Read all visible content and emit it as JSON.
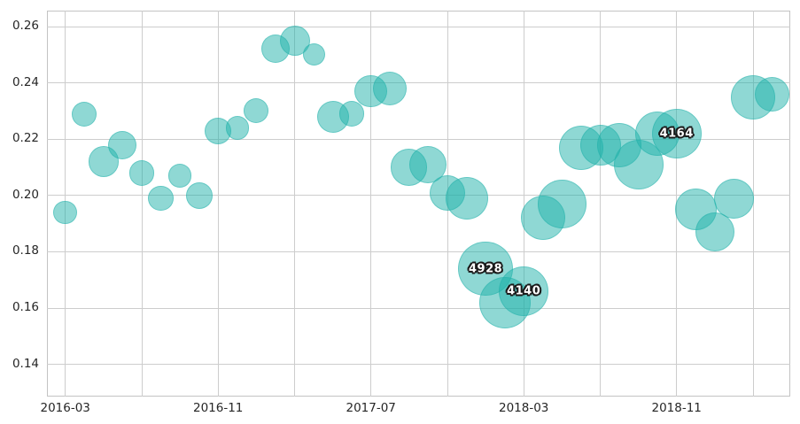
{
  "chart_data": {
    "type": "scatter",
    "subtype": "bubble",
    "title": "",
    "xlabel": "",
    "ylabel": "",
    "grid": true,
    "legend": false,
    "xlim": [
      "2016-02",
      "2019-05"
    ],
    "ylim": [
      0.129,
      0.266
    ],
    "x_tick_labels": [
      "2016-03",
      "2016-11",
      "2017-07",
      "2018-03",
      "2018-11"
    ],
    "x_grid_months": [
      "2016-03",
      "2016-07",
      "2016-11",
      "2017-03",
      "2017-07",
      "2017-11",
      "2018-03",
      "2018-07",
      "2018-11",
      "2019-03"
    ],
    "y_tick_labels": [
      "0.26",
      "0.24",
      "0.22",
      "0.20",
      "0.18",
      "0.16",
      "0.14"
    ],
    "x": [
      "2016-03",
      "2016-04",
      "2016-05",
      "2016-06",
      "2016-07",
      "2016-08",
      "2016-09",
      "2016-10",
      "2016-11",
      "2016-12",
      "2017-01",
      "2017-02",
      "2017-03",
      "2017-04",
      "2017-05",
      "2017-06",
      "2017-07",
      "2017-08",
      "2017-09",
      "2017-10",
      "2017-11",
      "2017-12",
      "2018-01",
      "2018-02",
      "2018-03",
      "2018-04",
      "2018-05",
      "2018-06",
      "2018-07",
      "2018-08",
      "2018-09",
      "2018-10",
      "2018-11",
      "2018-12",
      "2019-01",
      "2019-02",
      "2019-03",
      "2019-04"
    ],
    "values": [
      0.194,
      0.229,
      0.212,
      0.218,
      0.208,
      0.199,
      0.207,
      0.2,
      0.223,
      0.224,
      0.23,
      0.252,
      0.255,
      0.25,
      0.228,
      0.229,
      0.237,
      0.238,
      0.21,
      0.211,
      0.201,
      0.199,
      0.174,
      0.162,
      0.166,
      0.192,
      0.197,
      0.217,
      0.218,
      0.218,
      0.211,
      0.222,
      0.222,
      0.195,
      0.187,
      0.199,
      0.235,
      0.236
    ],
    "sizes": [
      925,
      1025,
      1565,
      1338,
      1069,
      1069,
      925,
      1177,
      1177,
      925,
      1025,
      1338,
      1511,
      817,
      1694,
      1069,
      1751,
      1928,
      2241,
      2306,
      2092,
      3012,
      4928,
      4399,
      4140,
      3268,
      3898,
      3268,
      2767,
      3268,
      4100,
      3268,
      4164,
      2839,
      2531,
      2647,
      3268,
      1988
    ],
    "annotations": [
      {
        "x": "2018-01",
        "text": "4928"
      },
      {
        "x": "2018-03",
        "text": "4140"
      },
      {
        "x": "2018-11",
        "text": "4164"
      }
    ],
    "colors": {
      "bubble_fill": "#20B2AA",
      "bubble_opacity": 0.5,
      "gridline": "#cdcdcd",
      "axis_text": "#262626",
      "annotation_text": "#ffffff",
      "annotation_outline": "#1a1a1a"
    }
  }
}
